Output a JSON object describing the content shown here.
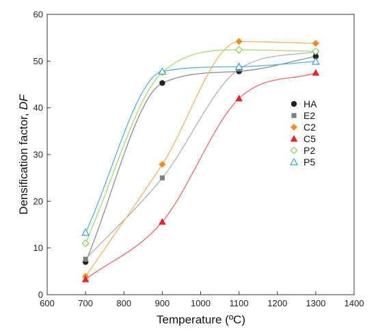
{
  "chart_data": {
    "type": "line",
    "xlabel": "Temperature (ºC)",
    "ylabel_main": "Densification factor, ",
    "ylabel_italic": "DF",
    "xlim": [
      600,
      1400
    ],
    "ylim": [
      0,
      60
    ],
    "x_ticks": [
      600,
      700,
      800,
      900,
      1000,
      1100,
      1200,
      1300,
      1400
    ],
    "y_ticks": [
      0,
      10,
      20,
      30,
      40,
      50,
      60
    ],
    "x": [
      700,
      900,
      1100,
      1300
    ],
    "grid": false,
    "legend_position": "right",
    "series": [
      {
        "name": "HA",
        "marker": "circle-filled",
        "color": "#222222",
        "line_color": "#8a8a8a",
        "values": [
          7.0,
          45.3,
          47.8,
          51.0
        ]
      },
      {
        "name": "E2",
        "marker": "square-filled",
        "color": "#808080",
        "line_color": "#b0b0b0",
        "values": [
          7.6,
          25.0,
          48.3,
          52.0
        ]
      },
      {
        "name": "C2",
        "marker": "diamond-filled",
        "color": "#f28c1e",
        "line_color": "#f6b066",
        "values": [
          3.9,
          27.9,
          54.2,
          53.8
        ]
      },
      {
        "name": "C5",
        "marker": "triangle-filled",
        "color": "#e4262b",
        "line_color": "#ee6b64",
        "values": [
          3.3,
          15.6,
          42.0,
          47.5
        ]
      },
      {
        "name": "P2",
        "marker": "diamond-open",
        "color": "#8ccf5a",
        "line_color": "#a3dc76",
        "values": [
          11.0,
          47.6,
          52.4,
          52.1
        ]
      },
      {
        "name": "P5",
        "marker": "triangle-open",
        "color": "#3a9fd6",
        "line_color": "#57b1e0",
        "values": [
          13.3,
          47.8,
          48.8,
          49.9
        ]
      }
    ]
  }
}
